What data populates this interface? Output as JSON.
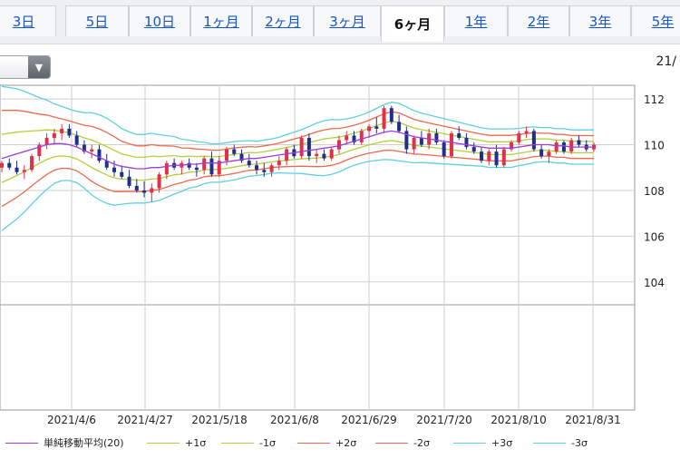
{
  "tabs": [
    {
      "label": "3日",
      "active": false
    },
    {
      "label": "5日",
      "active": false
    },
    {
      "label": "10日",
      "active": false
    },
    {
      "label": "1ヶ月",
      "active": false
    },
    {
      "label": "2ヶ月",
      "active": false
    },
    {
      "label": "3ヶ月",
      "active": false
    },
    {
      "label": "6ヶ月",
      "active": true
    },
    {
      "label": "1年",
      "active": false
    },
    {
      "label": "2年",
      "active": false
    },
    {
      "label": "3年",
      "active": false
    },
    {
      "label": "5年",
      "active": false
    }
  ],
  "toolbar": {
    "date_fragment": "21/"
  },
  "legend": [
    {
      "label": "単純移動平均(20)",
      "color": "#a23bd6"
    },
    {
      "label": "+1σ",
      "color": "#b5cf3a"
    },
    {
      "label": "-1σ",
      "color": "#b5cf3a"
    },
    {
      "label": "+2σ",
      "color": "#ee6a4a"
    },
    {
      "label": "-2σ",
      "color": "#ee6a4a"
    },
    {
      "label": "+3σ",
      "color": "#5fd0de"
    },
    {
      "label": "-3σ",
      "color": "#5fd0de"
    }
  ],
  "chart_data": {
    "type": "candlestick",
    "title": "",
    "ylim": [
      103,
      112.6
    ],
    "yticks": [
      "112",
      "110",
      "108",
      "106",
      "104"
    ],
    "xlabels": [
      "2021/4/6",
      "2021/4/27",
      "2021/5/18",
      "2021/6/8",
      "2021/6/29",
      "2021/7/20",
      "2021/8/10",
      "2021/8/31"
    ],
    "colors": {
      "up": "#e0304a",
      "down": "#1f2f8c",
      "sma": "#a23bd6",
      "s1": "#b5cf3a",
      "s2": "#ee6a4a",
      "s3": "#5fd0de"
    },
    "grid": true,
    "candles": [
      [
        109.0,
        109.3,
        108.8,
        109.2
      ],
      [
        109.2,
        109.4,
        108.9,
        109.0
      ],
      [
        109.0,
        109.3,
        108.7,
        108.8
      ],
      [
        108.8,
        109.1,
        108.5,
        108.9
      ],
      [
        108.9,
        109.6,
        108.8,
        109.5
      ],
      [
        109.5,
        110.1,
        109.3,
        110.0
      ],
      [
        110.0,
        110.5,
        109.8,
        110.3
      ],
      [
        110.3,
        110.7,
        110.0,
        110.5
      ],
      [
        110.5,
        110.9,
        110.2,
        110.7
      ],
      [
        110.7,
        110.9,
        110.3,
        110.4
      ],
      [
        110.4,
        110.6,
        109.9,
        110.0
      ],
      [
        110.0,
        110.2,
        109.6,
        109.7
      ],
      [
        109.7,
        110.0,
        109.4,
        109.8
      ],
      [
        109.8,
        110.0,
        109.2,
        109.3
      ],
      [
        109.3,
        109.6,
        108.9,
        109.0
      ],
      [
        109.0,
        109.3,
        108.6,
        108.8
      ],
      [
        108.8,
        109.1,
        108.5,
        108.6
      ],
      [
        108.6,
        108.9,
        108.1,
        108.2
      ],
      [
        108.2,
        108.5,
        107.9,
        108.0
      ],
      [
        108.0,
        108.4,
        107.7,
        107.9
      ],
      [
        107.9,
        108.3,
        107.5,
        108.1
      ],
      [
        108.1,
        108.8,
        107.9,
        108.7
      ],
      [
        108.7,
        109.3,
        108.5,
        109.2
      ],
      [
        109.2,
        109.4,
        108.9,
        109.0
      ],
      [
        109.0,
        109.3,
        108.7,
        109.2
      ],
      [
        109.2,
        109.4,
        108.9,
        109.0
      ],
      [
        109.0,
        109.2,
        108.6,
        108.9
      ],
      [
        108.9,
        109.5,
        108.7,
        109.4
      ],
      [
        109.4,
        109.7,
        108.6,
        108.7
      ],
      [
        108.7,
        109.5,
        108.6,
        109.3
      ],
      [
        109.3,
        109.9,
        109.1,
        109.8
      ],
      [
        109.8,
        110.0,
        109.5,
        109.6
      ],
      [
        109.6,
        109.8,
        109.2,
        109.3
      ],
      [
        109.3,
        109.6,
        109.0,
        109.1
      ],
      [
        109.1,
        109.3,
        108.7,
        108.9
      ],
      [
        108.9,
        109.2,
        108.6,
        108.8
      ],
      [
        108.8,
        109.2,
        108.6,
        109.1
      ],
      [
        109.1,
        109.5,
        108.9,
        109.3
      ],
      [
        109.3,
        109.9,
        109.1,
        109.8
      ],
      [
        109.8,
        110.0,
        109.4,
        109.5
      ],
      [
        109.5,
        110.4,
        109.4,
        110.3
      ],
      [
        110.3,
        110.5,
        109.3,
        109.5
      ],
      [
        109.5,
        109.8,
        109.2,
        109.6
      ],
      [
        109.6,
        109.8,
        109.3,
        109.4
      ],
      [
        109.4,
        109.9,
        109.3,
        109.8
      ],
      [
        109.8,
        110.4,
        109.6,
        110.2
      ],
      [
        110.2,
        110.6,
        110.0,
        110.4
      ],
      [
        110.4,
        110.6,
        110.0,
        110.1
      ],
      [
        110.1,
        110.7,
        110.0,
        110.6
      ],
      [
        110.6,
        110.9,
        110.3,
        110.8
      ],
      [
        110.8,
        111.2,
        110.5,
        110.7
      ],
      [
        110.7,
        111.7,
        110.5,
        111.6
      ],
      [
        111.6,
        111.7,
        110.9,
        111.0
      ],
      [
        111.0,
        111.3,
        110.5,
        110.6
      ],
      [
        110.6,
        110.8,
        109.6,
        109.8
      ],
      [
        109.8,
        110.4,
        109.6,
        110.3
      ],
      [
        110.3,
        110.6,
        109.9,
        110.0
      ],
      [
        110.0,
        110.7,
        109.8,
        110.5
      ],
      [
        110.5,
        110.7,
        110.0,
        110.1
      ],
      [
        110.1,
        110.2,
        109.4,
        109.5
      ],
      [
        109.5,
        110.6,
        109.4,
        110.5
      ],
      [
        110.5,
        110.8,
        110.2,
        110.3
      ],
      [
        110.3,
        110.5,
        109.8,
        109.9
      ],
      [
        109.9,
        110.1,
        109.6,
        109.7
      ],
      [
        109.7,
        109.9,
        109.2,
        109.3
      ],
      [
        109.3,
        109.8,
        109.1,
        109.7
      ],
      [
        109.7,
        110.0,
        109.0,
        109.1
      ],
      [
        109.1,
        109.9,
        109.0,
        109.8
      ],
      [
        109.8,
        110.2,
        109.7,
        110.1
      ],
      [
        110.1,
        110.6,
        110.0,
        110.5
      ],
      [
        110.5,
        110.8,
        110.3,
        110.6
      ],
      [
        110.6,
        110.7,
        109.7,
        109.8
      ],
      [
        109.8,
        110.0,
        109.4,
        109.5
      ],
      [
        109.5,
        109.8,
        109.2,
        109.7
      ],
      [
        109.7,
        110.2,
        109.6,
        110.1
      ],
      [
        110.1,
        110.2,
        109.6,
        109.7
      ],
      [
        109.7,
        110.3,
        109.6,
        110.2
      ],
      [
        110.2,
        110.4,
        109.9,
        110.0
      ],
      [
        110.0,
        110.2,
        109.7,
        109.8
      ],
      [
        109.8,
        110.1,
        109.7,
        110.0
      ]
    ],
    "sma": [
      109.4,
      109.5,
      109.6,
      109.7,
      109.8,
      109.9,
      110.0,
      110.05,
      110.05,
      110.0,
      109.9,
      109.75,
      109.6,
      109.45,
      109.3,
      109.15,
      109.05,
      109.0,
      108.95,
      108.95,
      109.0,
      109.0,
      109.05,
      109.1,
      109.1,
      109.15,
      109.15,
      109.2,
      109.2,
      109.2,
      109.25,
      109.3,
      109.35,
      109.4,
      109.4,
      109.45,
      109.5,
      109.55,
      109.6,
      109.65,
      109.7,
      109.75,
      109.8,
      109.85,
      109.9,
      109.95,
      110.05,
      110.15,
      110.25,
      110.35,
      110.45,
      110.55,
      110.6,
      110.55,
      110.45,
      110.35,
      110.3,
      110.25,
      110.2,
      110.15,
      110.1,
      110.05,
      110.0,
      109.95,
      109.9,
      109.85,
      109.85,
      109.85,
      109.85,
      109.9,
      109.95,
      110.0,
      110.0,
      110.0,
      109.95,
      109.95,
      109.9,
      109.9,
      109.9,
      109.9
    ],
    "sigma": [
      1.05,
      1.0,
      0.95,
      0.88,
      0.8,
      0.72,
      0.65,
      0.58,
      0.54,
      0.52,
      0.52,
      0.55,
      0.6,
      0.62,
      0.62,
      0.6,
      0.55,
      0.52,
      0.5,
      0.5,
      0.5,
      0.48,
      0.45,
      0.42,
      0.38,
      0.35,
      0.33,
      0.3,
      0.28,
      0.28,
      0.28,
      0.28,
      0.27,
      0.26,
      0.25,
      0.25,
      0.25,
      0.26,
      0.28,
      0.3,
      0.32,
      0.35,
      0.38,
      0.4,
      0.4,
      0.38,
      0.36,
      0.35,
      0.35,
      0.36,
      0.38,
      0.4,
      0.42,
      0.42,
      0.4,
      0.38,
      0.36,
      0.35,
      0.34,
      0.33,
      0.32,
      0.31,
      0.3,
      0.29,
      0.28,
      0.28,
      0.28,
      0.28,
      0.28,
      0.27,
      0.27,
      0.26,
      0.25,
      0.25,
      0.25,
      0.25,
      0.25,
      0.25,
      0.25,
      0.25
    ]
  }
}
